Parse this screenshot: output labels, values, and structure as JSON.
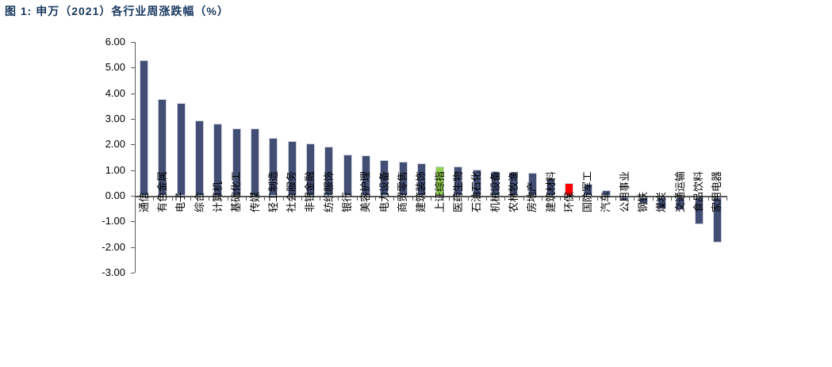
{
  "title": "图 1:  申万（2021）各行业周涨跌幅（%）",
  "colors": {
    "title_text": "#17375E",
    "axis": "#595959",
    "bar_navy": "#434E74",
    "bar_border": "#CFD3E0",
    "bar_green": "#92D050",
    "bar_red": "#FF0000",
    "label_text": "#000000",
    "background": "#FFFFFF"
  },
  "chart_data": {
    "type": "bar",
    "title": "申万（2021）各行业周涨跌幅（%）",
    "xlabel": "",
    "ylabel": "",
    "ylim": [
      -3,
      6
    ],
    "ytick_values": [
      6,
      5,
      4,
      3,
      2,
      1,
      0,
      -1,
      -2,
      -3
    ],
    "ytick_labels": [
      "6.00",
      "5.00",
      "4.00",
      "3.00",
      "2.00",
      "1.00",
      "0.00",
      "-1.00",
      "-2.00",
      "-3.00"
    ],
    "grid": false,
    "legend_position": "none",
    "categories": [
      "通信",
      "有色金属",
      "电子",
      "综合",
      "计算机",
      "基础化工",
      "传媒",
      "轻工制造",
      "社会服务",
      "非银金融",
      "纺织服饰",
      "银行",
      "美容护理",
      "电力设备",
      "商贸零售",
      "建筑装饰",
      "上证综指",
      "医药生物",
      "石油石化",
      "机械设备",
      "农林牧渔",
      "房地产",
      "建筑材料",
      "环保",
      "国防军工",
      "汽车",
      "公用事业",
      "钢铁",
      "煤炭",
      "交通运输",
      "食品饮料",
      "家用电器"
    ],
    "values": [
      5.3,
      3.78,
      3.62,
      2.93,
      2.83,
      2.64,
      2.62,
      2.25,
      2.13,
      2.04,
      1.92,
      1.62,
      1.58,
      1.4,
      1.33,
      1.28,
      1.15,
      1.13,
      1.03,
      0.96,
      0.93,
      0.89,
      0.68,
      0.49,
      0.45,
      0.21,
      -0.12,
      -0.25,
      -0.47,
      -0.51,
      -1.04,
      -1.75
    ],
    "bar_color_keys": [
      "navy",
      "navy",
      "navy",
      "navy",
      "navy",
      "navy",
      "navy",
      "navy",
      "navy",
      "navy",
      "navy",
      "navy",
      "navy",
      "navy",
      "navy",
      "navy",
      "green",
      "navy",
      "navy",
      "navy",
      "navy",
      "navy",
      "navy",
      "red",
      "navy",
      "navy",
      "navy",
      "navy",
      "navy",
      "navy",
      "navy",
      "navy"
    ]
  }
}
